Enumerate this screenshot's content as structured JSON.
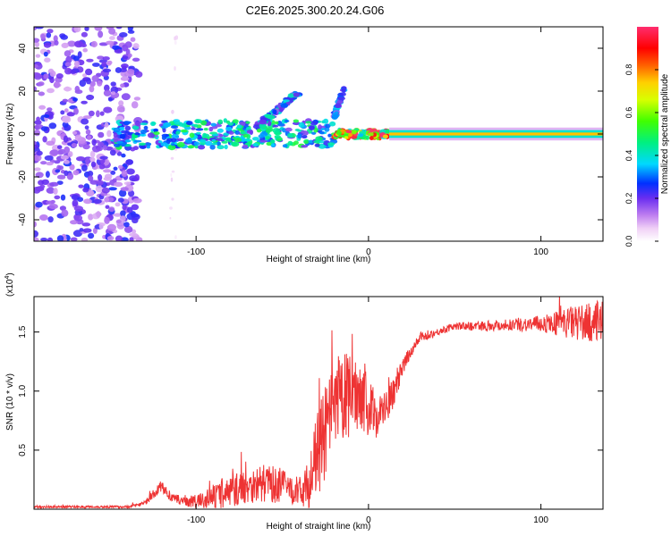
{
  "title": "C2E6.2025.300.20.24.G06",
  "chart_data": [
    {
      "type": "heatmap",
      "xlabel": "Height of straight line (km)",
      "ylabel": "Frequency (Hz)",
      "xlim": [
        -194,
        136
      ],
      "ylim": [
        -50,
        50
      ],
      "xticks": [
        -100,
        0,
        100
      ],
      "xtick_labels": [
        "-100",
        "0",
        "100"
      ],
      "yticks": [
        -40,
        -20,
        0,
        20,
        40
      ],
      "ytick_labels": [
        "-40",
        "-20",
        "0",
        "20",
        "40"
      ],
      "colorbar": {
        "label": "Normalized spectral amplitude",
        "range": [
          0,
          1
        ],
        "ticks": [
          0.0,
          0.2,
          0.4,
          0.6,
          0.8
        ],
        "tick_labels": [
          "0.0",
          "0.2",
          "0.4",
          "0.6",
          "0.8"
        ]
      },
      "features": [
        {
          "name": "noise region",
          "x": [
            -194,
            -133
          ],
          "y": [
            -50,
            50
          ],
          "amplitude": 0.2
        },
        {
          "name": "sparse noise column",
          "x": [
            -115,
            -111
          ],
          "y": [
            -50,
            45
          ],
          "amplitude": 0.05
        },
        {
          "name": "scattered band",
          "x": [
            -148,
            -20
          ],
          "y": [
            -6,
            8
          ],
          "amplitude": 0.4
        },
        {
          "name": "rising branch",
          "x": [
            -62,
            -40
          ],
          "y": [
            5,
            20
          ],
          "amplitude": 0.35
        },
        {
          "name": "rising branch",
          "x": [
            -20,
            -14
          ],
          "y": [
            8,
            22
          ],
          "amplitude": 0.3
        },
        {
          "name": "near-zero fragments",
          "x": [
            -20,
            12
          ],
          "y": [
            -2,
            2
          ],
          "amplitude": 0.85
        },
        {
          "name": "steady line",
          "x": [
            12,
            136
          ],
          "y": [
            -1,
            1
          ],
          "amplitude": 0.75
        }
      ]
    },
    {
      "type": "line",
      "xlabel": "Height of straight line (km)",
      "ylabel": "SNR (10 * v/v)",
      "scale_note": "(x10",
      "scale_exp": "4",
      "xlim": [
        -194,
        136
      ],
      "ylim": [
        0,
        1.8
      ],
      "xticks": [
        -100,
        0,
        100
      ],
      "xtick_labels": [
        "-100",
        "0",
        "100"
      ],
      "yticks": [
        0.5,
        1.0,
        1.5
      ],
      "ytick_labels": [
        "0.5",
        "1.0",
        "1.5"
      ],
      "series": [
        {
          "name": "SNR",
          "color": "#ee3333",
          "x": [
            -194,
            -180,
            -160,
            -140,
            -130,
            -125,
            -120,
            -115,
            -110,
            -100,
            -90,
            -80,
            -70,
            -60,
            -50,
            -40,
            -35,
            -30,
            -25,
            -20,
            -15,
            -10,
            -5,
            0,
            5,
            10,
            15,
            20,
            25,
            30,
            40,
            50,
            60,
            80,
            100,
            120,
            136
          ],
          "values": [
            0.02,
            0.02,
            0.02,
            0.02,
            0.05,
            0.12,
            0.2,
            0.1,
            0.08,
            0.06,
            0.1,
            0.15,
            0.2,
            0.22,
            0.2,
            0.15,
            0.2,
            0.45,
            0.65,
            0.8,
            0.95,
            0.95,
            1.0,
            0.85,
            0.8,
            0.85,
            1.0,
            1.2,
            1.35,
            1.45,
            1.5,
            1.55,
            1.55,
            1.56,
            1.57,
            1.58,
            1.58
          ],
          "noise": [
            0.01,
            0.01,
            0.01,
            0.01,
            0.02,
            0.04,
            0.05,
            0.03,
            0.04,
            0.06,
            0.1,
            0.14,
            0.15,
            0.16,
            0.15,
            0.12,
            0.2,
            0.35,
            0.4,
            0.45,
            0.4,
            0.35,
            0.3,
            0.25,
            0.2,
            0.15,
            0.12,
            0.08,
            0.05,
            0.04,
            0.03,
            0.03,
            0.04,
            0.05,
            0.07,
            0.15,
            0.18
          ]
        }
      ]
    }
  ]
}
